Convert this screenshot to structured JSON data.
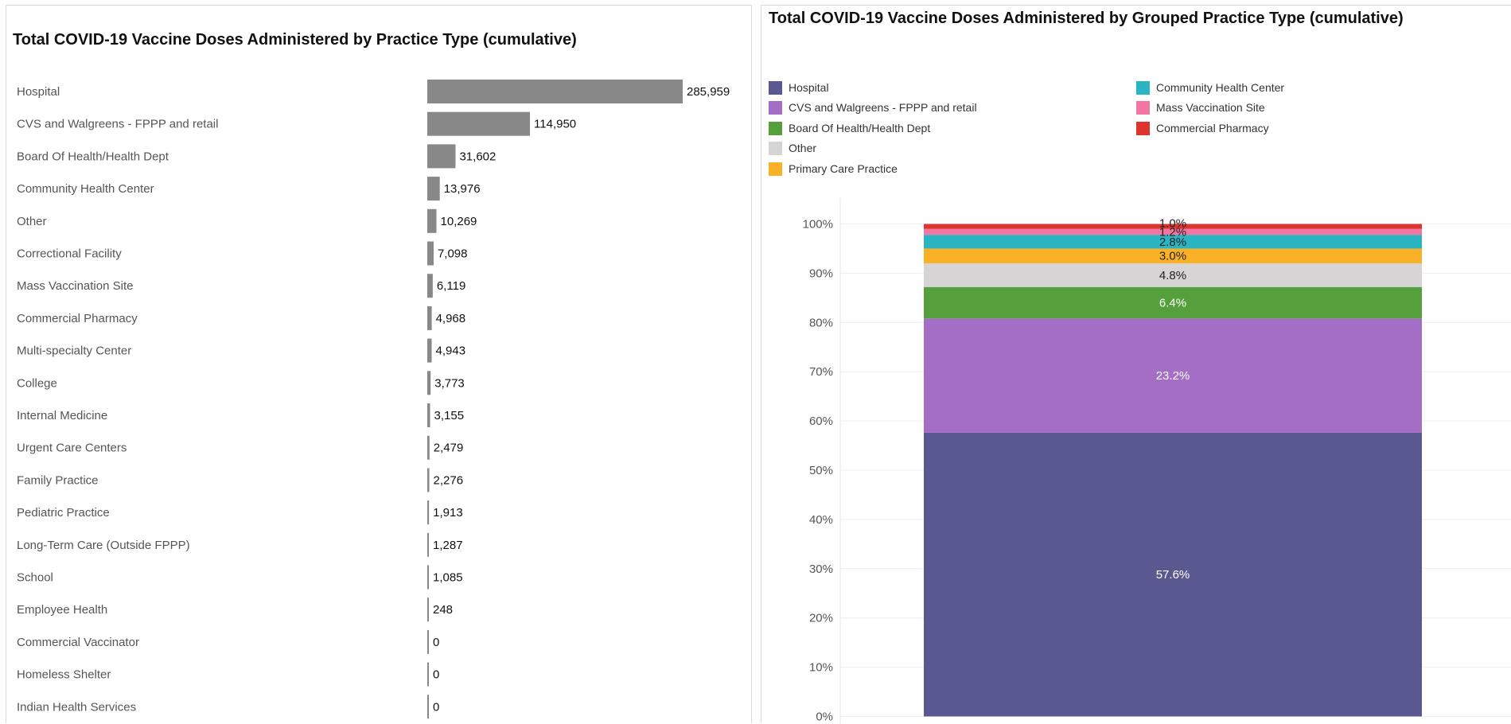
{
  "chart_data": [
    {
      "type": "bar",
      "orientation": "horizontal",
      "title": "Total COVID-19 Vaccine Doses Administered by Practice Type (cumulative)",
      "categories": [
        "Hospital",
        "CVS and Walgreens - FPPP and retail",
        "Board Of Health/Health Dept",
        "Community Health Center",
        "Other",
        "Correctional Facility",
        "Mass Vaccination Site",
        "Commercial Pharmacy",
        "Multi-specialty Center",
        "College",
        "Internal Medicine",
        "Urgent Care Centers",
        "Family Practice",
        "Pediatric Practice",
        "Long-Term Care (Outside FPPP)",
        "School",
        "Employee Health",
        "Commercial Vaccinator",
        "Homeless Shelter",
        "Indian Health Services"
      ],
      "values": [
        285959,
        114950,
        31602,
        13976,
        10269,
        7098,
        6119,
        4968,
        4943,
        3773,
        3155,
        2479,
        2276,
        1913,
        1287,
        1085,
        248,
        0,
        0,
        0
      ],
      "value_labels": [
        "285,959",
        "114,950",
        "31,602",
        "13,976",
        "10,269",
        "7,098",
        "6,119",
        "4,968",
        "4,943",
        "3,773",
        "3,155",
        "2,479",
        "2,276",
        "1,913",
        "1,287",
        "1,085",
        "248",
        "0",
        "0",
        "0"
      ],
      "bar_color": "#888888",
      "grid": false
    },
    {
      "type": "bar",
      "stacked": true,
      "normalized": true,
      "title": "Total COVID-19 Vaccine Doses Administered by Grouped Practice Type (cumulative)",
      "legend_position": "top",
      "legend": [
        {
          "name": "Hospital",
          "color": "#5a5891"
        },
        {
          "name": "Community Health Center",
          "color": "#2bb5c2"
        },
        {
          "name": "CVS and Walgreens - FPPP and retail",
          "color": "#a36ec4"
        },
        {
          "name": "Mass Vaccination Site",
          "color": "#f276a1"
        },
        {
          "name": "Board Of Health/Health Dept",
          "color": "#55a03c"
        },
        {
          "name": "Commercial Pharmacy",
          "color": "#dd3430"
        },
        {
          "name": "Other",
          "color": "#d6d4d5"
        },
        {
          "name": "Primary Care Practice",
          "color": "#f9b227"
        }
      ],
      "series": [
        {
          "name": "Hospital",
          "value": 57.6,
          "label": "57.6%",
          "color": "#5a5891",
          "label_color": "#ffffff"
        },
        {
          "name": "CVS and Walgreens - FPPP and retail",
          "value": 23.2,
          "label": "23.2%",
          "color": "#a36ec4",
          "label_color": "#ffffff"
        },
        {
          "name": "Board Of Health/Health Dept",
          "value": 6.4,
          "label": "6.4%",
          "color": "#55a03c",
          "label_color": "#ffffff"
        },
        {
          "name": "Other",
          "value": 4.8,
          "label": "4.8%",
          "color": "#d6d4d5",
          "label_color": "#222222"
        },
        {
          "name": "Primary Care Practice",
          "value": 3.0,
          "label": "3.0%",
          "color": "#f9b227",
          "label_color": "#222222"
        },
        {
          "name": "Community Health Center",
          "value": 2.8,
          "label": "2.8%",
          "color": "#2bb5c2",
          "label_color": "#222222"
        },
        {
          "name": "Mass Vaccination Site",
          "value": 1.2,
          "label": "1.2%",
          "color": "#f276a1",
          "label_color": "#222222"
        },
        {
          "name": "Commercial Pharmacy",
          "value": 1.0,
          "label": "1.0%",
          "color": "#dd3430",
          "label_color": "#222222"
        }
      ],
      "ylim": [
        0,
        100
      ],
      "yticks": [
        "0%",
        "10%",
        "20%",
        "30%",
        "40%",
        "50%",
        "60%",
        "70%",
        "80%",
        "90%",
        "100%"
      ],
      "grid": true
    }
  ]
}
